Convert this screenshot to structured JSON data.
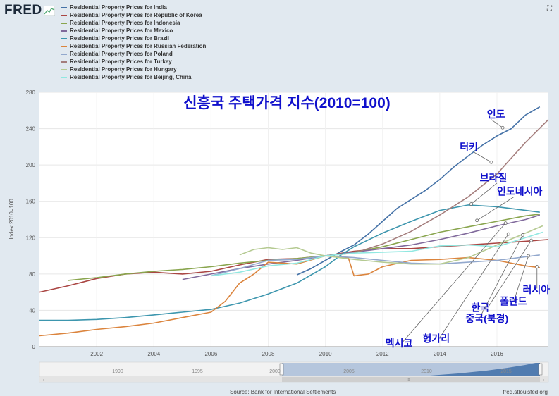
{
  "brand": "FRED",
  "icons": {
    "logo": "chart-line-icon",
    "expand": "expand-icon"
  },
  "chart_data": {
    "type": "line",
    "title": "신흥국 주택가격 지수(2010=100)",
    "ylabel": "Index 2010=100",
    "xlabel": "",
    "xlim": [
      2000.0,
      2017.8
    ],
    "ylim": [
      0,
      280
    ],
    "yticks": [
      0,
      40,
      80,
      120,
      160,
      200,
      240,
      280
    ],
    "xticks": [
      2002,
      2004,
      2006,
      2008,
      2010,
      2012,
      2014,
      2016
    ],
    "grid": true,
    "legend": "top-left",
    "series": [
      {
        "name": "Residential Property Prices for India",
        "color": "#4572a7",
        "points": [
          [
            2009.0,
            79
          ],
          [
            2009.5,
            86
          ],
          [
            2010.0,
            95
          ],
          [
            2010.5,
            104
          ],
          [
            2011.0,
            112
          ],
          [
            2011.5,
            124
          ],
          [
            2012.0,
            138
          ],
          [
            2012.5,
            152
          ],
          [
            2013.0,
            162
          ],
          [
            2013.5,
            172
          ],
          [
            2014.0,
            184
          ],
          [
            2014.5,
            198
          ],
          [
            2015.0,
            210
          ],
          [
            2015.5,
            222
          ],
          [
            2016.0,
            232
          ],
          [
            2016.5,
            240
          ],
          [
            2017.0,
            255
          ],
          [
            2017.5,
            264
          ]
        ]
      },
      {
        "name": "Residential Property Prices for Republic of Korea",
        "color": "#aa4643",
        "points": [
          [
            2000.0,
            60
          ],
          [
            2001.0,
            67
          ],
          [
            2002.0,
            75
          ],
          [
            2003.0,
            80
          ],
          [
            2004.0,
            82
          ],
          [
            2005.0,
            80
          ],
          [
            2006.0,
            83
          ],
          [
            2007.0,
            90
          ],
          [
            2008.0,
            96
          ],
          [
            2009.0,
            97
          ],
          [
            2010.0,
            100
          ],
          [
            2011.0,
            105
          ],
          [
            2012.0,
            108
          ],
          [
            2013.0,
            108
          ],
          [
            2014.0,
            110
          ],
          [
            2015.0,
            112
          ],
          [
            2016.0,
            114
          ],
          [
            2017.0,
            116
          ],
          [
            2017.8,
            118
          ]
        ]
      },
      {
        "name": "Residential Property Prices for Indonesia",
        "color": "#89a54e",
        "points": [
          [
            2001.0,
            73
          ],
          [
            2002.0,
            76
          ],
          [
            2003.0,
            80
          ],
          [
            2004.0,
            83
          ],
          [
            2005.0,
            85
          ],
          [
            2006.0,
            88
          ],
          [
            2007.0,
            92
          ],
          [
            2008.0,
            95
          ],
          [
            2009.0,
            97
          ],
          [
            2010.0,
            100
          ],
          [
            2011.0,
            104
          ],
          [
            2012.0,
            110
          ],
          [
            2013.0,
            118
          ],
          [
            2014.0,
            126
          ],
          [
            2015.0,
            132
          ],
          [
            2016.0,
            138
          ],
          [
            2017.0,
            144
          ],
          [
            2017.5,
            146
          ]
        ]
      },
      {
        "name": "Residential Property Prices for Mexico",
        "color": "#80699b",
        "points": [
          [
            2005.0,
            74
          ],
          [
            2006.0,
            80
          ],
          [
            2007.0,
            86
          ],
          [
            2008.0,
            91
          ],
          [
            2009.0,
            95
          ],
          [
            2010.0,
            100
          ],
          [
            2011.0,
            104
          ],
          [
            2012.0,
            108
          ],
          [
            2013.0,
            112
          ],
          [
            2014.0,
            118
          ],
          [
            2015.0,
            125
          ],
          [
            2016.0,
            133
          ],
          [
            2017.0,
            140
          ],
          [
            2017.5,
            145
          ]
        ]
      },
      {
        "name": "Residential Property Prices for Brazil",
        "color": "#3d96ae",
        "points": [
          [
            2000.0,
            29
          ],
          [
            2001.0,
            29
          ],
          [
            2002.0,
            30
          ],
          [
            2003.0,
            32
          ],
          [
            2004.0,
            35
          ],
          [
            2005.0,
            38
          ],
          [
            2006.0,
            41
          ],
          [
            2007.0,
            48
          ],
          [
            2008.0,
            58
          ],
          [
            2009.0,
            70
          ],
          [
            2010.0,
            88
          ],
          [
            2010.5,
            100
          ],
          [
            2011.0,
            110
          ],
          [
            2012.0,
            125
          ],
          [
            2013.0,
            138
          ],
          [
            2014.0,
            150
          ],
          [
            2015.0,
            156
          ],
          [
            2016.0,
            154
          ],
          [
            2017.0,
            150
          ],
          [
            2017.5,
            148
          ]
        ]
      },
      {
        "name": "Residential Property Prices for Russian Federation",
        "color": "#db843d",
        "points": [
          [
            2000.0,
            12
          ],
          [
            2001.0,
            15
          ],
          [
            2002.0,
            19
          ],
          [
            2003.0,
            22
          ],
          [
            2004.0,
            26
          ],
          [
            2005.0,
            32
          ],
          [
            2006.0,
            38
          ],
          [
            2006.5,
            50
          ],
          [
            2007.0,
            70
          ],
          [
            2007.5,
            80
          ],
          [
            2008.0,
            93
          ],
          [
            2009.0,
            91
          ],
          [
            2010.0,
            100
          ],
          [
            2010.8,
            98
          ],
          [
            2011.0,
            78
          ],
          [
            2011.5,
            80
          ],
          [
            2012.0,
            88
          ],
          [
            2013.0,
            95
          ],
          [
            2014.0,
            96
          ],
          [
            2015.0,
            98
          ],
          [
            2016.0,
            95
          ],
          [
            2017.0,
            89
          ],
          [
            2017.5,
            87
          ]
        ]
      },
      {
        "name": "Residential Property Prices for Poland",
        "color": "#92a8cd",
        "points": [
          [
            2006.0,
            78
          ],
          [
            2007.0,
            86
          ],
          [
            2008.0,
            95
          ],
          [
            2009.0,
            96
          ],
          [
            2010.0,
            100
          ],
          [
            2011.0,
            98
          ],
          [
            2012.0,
            95
          ],
          [
            2013.0,
            92
          ],
          [
            2014.0,
            91
          ],
          [
            2015.0,
            93
          ],
          [
            2016.0,
            95
          ],
          [
            2017.0,
            99
          ],
          [
            2017.5,
            101
          ]
        ]
      },
      {
        "name": "Residential Property Prices for Turkey",
        "color": "#a47d7c",
        "points": [
          [
            2010.0,
            100
          ],
          [
            2011.0,
            103
          ],
          [
            2012.0,
            113
          ],
          [
            2013.0,
            127
          ],
          [
            2014.0,
            145
          ],
          [
            2015.0,
            165
          ],
          [
            2016.0,
            190
          ],
          [
            2017.0,
            225
          ],
          [
            2017.8,
            250
          ]
        ]
      },
      {
        "name": "Residential Property Prices for Hungary",
        "color": "#b5ca92",
        "points": [
          [
            2007.0,
            101
          ],
          [
            2007.5,
            107
          ],
          [
            2008.0,
            109
          ],
          [
            2008.5,
            107
          ],
          [
            2009.0,
            109
          ],
          [
            2009.5,
            103
          ],
          [
            2010.0,
            100
          ],
          [
            2011.0,
            96
          ],
          [
            2012.0,
            93
          ],
          [
            2013.0,
            91
          ],
          [
            2014.0,
            91
          ],
          [
            2015.0,
            98
          ],
          [
            2016.0,
            112
          ],
          [
            2017.0,
            125
          ],
          [
            2017.6,
            133
          ]
        ]
      },
      {
        "name": "Residential Property Prices for Beijing, China",
        "color": "#91e8e1",
        "points": [
          [
            2006.0,
            78
          ],
          [
            2007.0,
            82
          ],
          [
            2008.0,
            89
          ],
          [
            2009.0,
            92
          ],
          [
            2010.0,
            100
          ],
          [
            2011.0,
            103
          ],
          [
            2012.0,
            104
          ],
          [
            2013.0,
            105
          ],
          [
            2014.0,
            111
          ],
          [
            2015.0,
            112
          ],
          [
            2016.0,
            110
          ],
          [
            2017.0,
            120
          ],
          [
            2017.6,
            126
          ]
        ]
      }
    ],
    "annotations": [
      {
        "text": "인도",
        "ax": 2015.8,
        "ay": 250,
        "tx": 2016.2,
        "ty": 241,
        "lx": 2015.65,
        "ly": 252
      },
      {
        "text": "터키",
        "ax": 2015.2,
        "ay": 214,
        "tx": 2015.8,
        "ty": 203,
        "lx": 2014.7,
        "ly": 216
      },
      {
        "text": "브라질",
        "ax": 2016.0,
        "ay": 180,
        "tx": 2015.1,
        "ty": 157,
        "lx": 2015.4,
        "ly": 182
      },
      {
        "text": "인도네시아",
        "ax": 2016.6,
        "ay": 165,
        "tx": 2015.3,
        "ty": 139,
        "lx": 2016.0,
        "ly": 167
      },
      {
        "text": "러시아",
        "ax": 2017.4,
        "ay": 64,
        "tx": 2017.4,
        "ty": 88,
        "lx": 2016.9,
        "ly": 59
      },
      {
        "text": "폴란드",
        "ax": 2016.6,
        "ay": 51,
        "tx": 2017.1,
        "ty": 100,
        "lx": 2016.1,
        "ly": 46
      },
      {
        "text": "한국",
        "ax": 2015.7,
        "ay": 44,
        "tx": 2017.2,
        "ty": 117,
        "lx": 2015.1,
        "ly": 39
      },
      {
        "text": "중국(북경)",
        "ax": 2015.4,
        "ay": 32,
        "tx": 2016.9,
        "ty": 123,
        "lx": 2014.9,
        "ly": 27
      },
      {
        "text": "헝가리",
        "ax": 2014.0,
        "ay": 10,
        "tx": 2016.4,
        "ty": 124,
        "lx": 2013.4,
        "ly": 5
      },
      {
        "text": "멕시코",
        "ax": 2012.7,
        "ay": 5,
        "tx": 2016.3,
        "ty": 136,
        "lx": 2012.1,
        "ly": 0
      }
    ]
  },
  "navigator": {
    "ticks": [
      "1990",
      "1995",
      "2000",
      "2005",
      "2010",
      "2015"
    ]
  },
  "footer": {
    "source": "Source: Bank for International Settlements",
    "site": "fred.stlouisfed.org"
  }
}
